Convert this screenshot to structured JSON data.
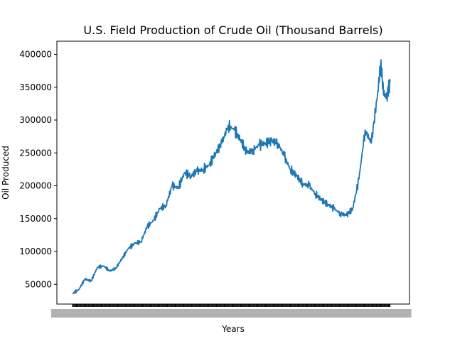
{
  "chart_data": {
    "type": "line",
    "title": "U.S. Field Production of Crude Oil (Thousand Barrels)",
    "xlabel": "Years",
    "ylabel": "Oil Produced",
    "y_ticks": [
      50000,
      100000,
      150000,
      200000,
      250000,
      300000,
      350000,
      400000
    ],
    "y_tick_labels": [
      "50000",
      "100000",
      "150000",
      "200000",
      "250000",
      "300000",
      "350000",
      "400000"
    ],
    "ylim": [
      20000,
      420000
    ],
    "x_range": [
      1920,
      2023
    ],
    "x_tick_labels_note": "x tick labels overlap and are unreadable",
    "grid": false,
    "series": [
      {
        "color": "#1f77b4",
        "x": [
          1920,
          1922,
          1924,
          1926,
          1928,
          1930,
          1932,
          1934,
          1936,
          1938,
          1940,
          1942,
          1944,
          1946,
          1948,
          1950,
          1952,
          1954,
          1956,
          1958,
          1960,
          1962,
          1964,
          1966,
          1968,
          1970,
          1972,
          1974,
          1976,
          1978,
          1980,
          1982,
          1984,
          1986,
          1988,
          1990,
          1992,
          1994,
          1996,
          1998,
          2000,
          2002,
          2004,
          2006,
          2008,
          2010,
          2012,
          2014,
          2016,
          2018,
          2019,
          2020,
          2021,
          2022
        ],
        "values": [
          36000,
          42000,
          58000,
          55000,
          76000,
          78000,
          70000,
          75000,
          90000,
          105000,
          112000,
          115000,
          138000,
          147000,
          165000,
          170000,
          200000,
          197000,
          220000,
          215000,
          222000,
          225000,
          232000,
          250000,
          265000,
          292000,
          285000,
          270000,
          250000,
          255000,
          262000,
          265000,
          268000,
          265000,
          245000,
          225000,
          215000,
          203000,
          200000,
          188000,
          178000,
          172000,
          165000,
          158000,
          155000,
          165000,
          210000,
          285000,
          265000,
          340000,
          385000,
          340000,
          335000,
          358000
        ]
      }
    ]
  }
}
